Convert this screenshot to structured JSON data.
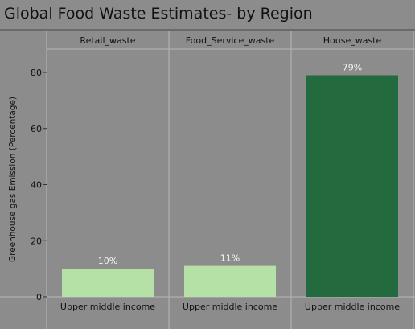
{
  "title": "Global Food Waste Estimates- by Region",
  "chart_data": {
    "type": "bar",
    "panels": [
      "Retail_waste",
      "Food_Service_waste",
      "House_waste"
    ],
    "category_label": "Upper middle income",
    "values": [
      10,
      11,
      79
    ],
    "data_labels": [
      "10%",
      "11%",
      "79%"
    ],
    "ylabel": "Greenhouse gas Emission (Percentage)",
    "yticks": [
      0,
      20,
      40,
      60,
      80
    ],
    "ylim": [
      0,
      88
    ],
    "colors": {
      "background": "#8c8c8c",
      "light_bar": "#b5e1a6",
      "dark_bar": "#236b3f",
      "grid": "#b8b8b8"
    },
    "bar_colors": [
      "#b5e1a6",
      "#b5e1a6",
      "#236b3f"
    ],
    "legend": "none",
    "grid": true
  }
}
